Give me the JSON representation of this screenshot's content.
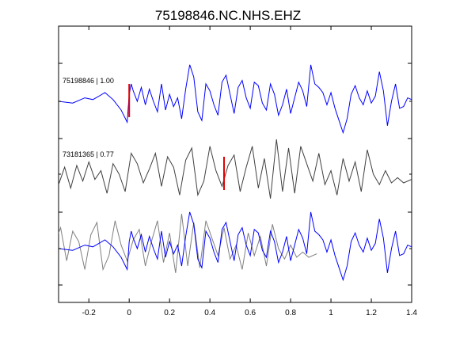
{
  "chart_data": {
    "type": "line",
    "title": "75198846.NC.NHS.EHZ",
    "xlabel": "",
    "ylabel": "",
    "xlim": [
      -0.35,
      1.4
    ],
    "xticks": [
      -0.2,
      0,
      0.2,
      0.4,
      0.6,
      0.8,
      1,
      1.2,
      1.4
    ],
    "grid": false,
    "panels": [
      {
        "label": "75198846 | 1.00",
        "color": "#0000ff",
        "pick_time": 0.0,
        "x": [
          -0.35,
          -0.28,
          -0.22,
          -0.18,
          -0.12,
          -0.08,
          -0.04,
          -0.01,
          0.0,
          0.01,
          0.02,
          0.04,
          0.06,
          0.08,
          0.1,
          0.12,
          0.14,
          0.16,
          0.18,
          0.2,
          0.22,
          0.24,
          0.26,
          0.28,
          0.3,
          0.32,
          0.34,
          0.36,
          0.38,
          0.4,
          0.42,
          0.44,
          0.46,
          0.48,
          0.5,
          0.52,
          0.54,
          0.56,
          0.58,
          0.6,
          0.62,
          0.64,
          0.66,
          0.68,
          0.7,
          0.72,
          0.74,
          0.76,
          0.78,
          0.8,
          0.82,
          0.84,
          0.86,
          0.88,
          0.9,
          0.92,
          0.94,
          0.96,
          0.98,
          1.0,
          1.02,
          1.04,
          1.06,
          1.08,
          1.1,
          1.12,
          1.14,
          1.16,
          1.18,
          1.2,
          1.22,
          1.24,
          1.26,
          1.28,
          1.3,
          1.32,
          1.34,
          1.36,
          1.38,
          1.4
        ],
        "y": [
          0.0,
          -0.05,
          0.1,
          0.05,
          0.25,
          0.05,
          -0.25,
          -0.6,
          0.2,
          0.5,
          0.3,
          0.0,
          0.4,
          -0.1,
          0.35,
          0.0,
          -0.3,
          0.5,
          -0.25,
          0.2,
          -0.15,
          0.1,
          -0.5,
          0.35,
          1.05,
          0.7,
          -0.3,
          -0.55,
          0.5,
          0.3,
          -0.1,
          -0.4,
          0.55,
          0.75,
          0.2,
          -0.35,
          0.4,
          0.6,
          0.1,
          -0.2,
          0.55,
          0.45,
          -0.05,
          -0.25,
          0.5,
          0.2,
          -0.4,
          -0.1,
          0.35,
          -0.35,
          0.1,
          0.55,
          0.3,
          -0.15,
          1.05,
          0.5,
          0.4,
          0.25,
          -0.1,
          0.25,
          -0.2,
          -0.55,
          -0.9,
          -0.5,
          0.2,
          0.45,
          0.1,
          -0.1,
          0.3,
          -0.05,
          0.15,
          0.85,
          0.3,
          -0.7,
          0.0,
          0.5,
          -0.2,
          -0.15,
          0.1,
          0.05
        ]
      },
      {
        "label": "73181365 | 0.77",
        "color": "#404040",
        "pick_time": 0.47,
        "x": [
          -0.35,
          -0.32,
          -0.29,
          -0.26,
          -0.23,
          -0.2,
          -0.17,
          -0.14,
          -0.11,
          -0.08,
          -0.05,
          -0.02,
          0.01,
          0.04,
          0.07,
          0.1,
          0.13,
          0.16,
          0.19,
          0.22,
          0.25,
          0.28,
          0.31,
          0.34,
          0.37,
          0.4,
          0.43,
          0.46,
          0.49,
          0.52,
          0.55,
          0.58,
          0.61,
          0.64,
          0.67,
          0.7,
          0.73,
          0.76,
          0.79,
          0.82,
          0.85,
          0.88,
          0.91,
          0.94,
          0.97,
          1.0,
          1.03,
          1.06,
          1.09,
          1.12,
          1.15,
          1.18,
          1.21,
          1.24,
          1.27,
          1.3,
          1.33,
          1.36,
          1.4
        ],
        "y": [
          -0.3,
          0.2,
          -0.4,
          0.25,
          -0.2,
          0.35,
          -0.15,
          0.1,
          -0.55,
          0.3,
          0.0,
          -0.5,
          0.6,
          0.3,
          -0.25,
          0.15,
          0.6,
          -0.35,
          0.5,
          0.2,
          -0.6,
          0.4,
          0.75,
          -0.6,
          -0.2,
          0.8,
          0.1,
          -0.35,
          0.25,
          0.55,
          -0.5,
          0.2,
          0.8,
          -0.4,
          0.45,
          -0.7,
          1.0,
          -0.5,
          0.75,
          -0.55,
          0.8,
          0.3,
          -0.2,
          0.6,
          -0.3,
          0.1,
          -0.6,
          0.45,
          -0.2,
          0.35,
          -0.5,
          0.7,
          0.0,
          -0.3,
          0.1,
          -0.25,
          -0.1,
          -0.25,
          -0.15
        ]
      },
      {
        "label": "",
        "overlay": true,
        "series": [
          {
            "ref": 0,
            "color": "#0000ff"
          },
          {
            "ref": 1,
            "color": "#808080",
            "shift": -0.47
          }
        ]
      }
    ]
  }
}
